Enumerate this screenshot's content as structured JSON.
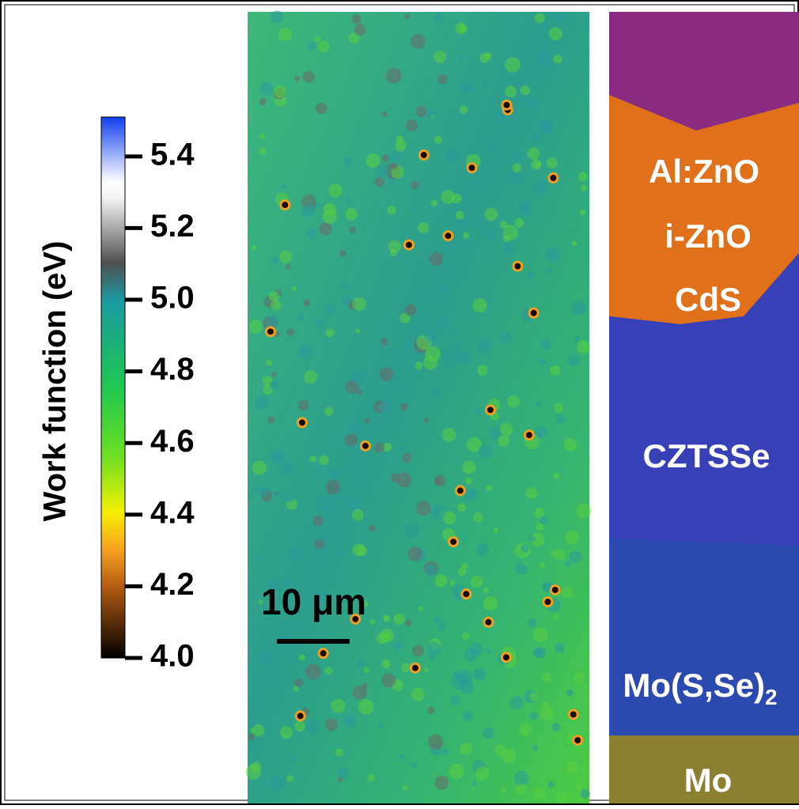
{
  "colorbar": {
    "label": "Work function (eV)",
    "lim": [
      4.0,
      5.51
    ],
    "ticks": [
      {
        "value": 4.0,
        "label": "4.0"
      },
      {
        "value": 4.2,
        "label": "4.2"
      },
      {
        "value": 4.4,
        "label": "4.4"
      },
      {
        "value": 4.6,
        "label": "4.6"
      },
      {
        "value": 4.8,
        "label": "4.8"
      },
      {
        "value": 5.0,
        "label": "5.0"
      },
      {
        "value": 5.2,
        "label": "5.2"
      },
      {
        "value": 5.4,
        "label": "5.4"
      }
    ]
  },
  "scale_bar": {
    "label": "10 μm"
  },
  "layers": [
    {
      "label": "Al:ZnO"
    },
    {
      "label": "i-ZnO"
    },
    {
      "label": "CdS"
    },
    {
      "label": "CZTSSe"
    },
    {
      "label": "Mo(S,Se)",
      "subscript": "2"
    },
    {
      "label": "Mo"
    }
  ]
}
